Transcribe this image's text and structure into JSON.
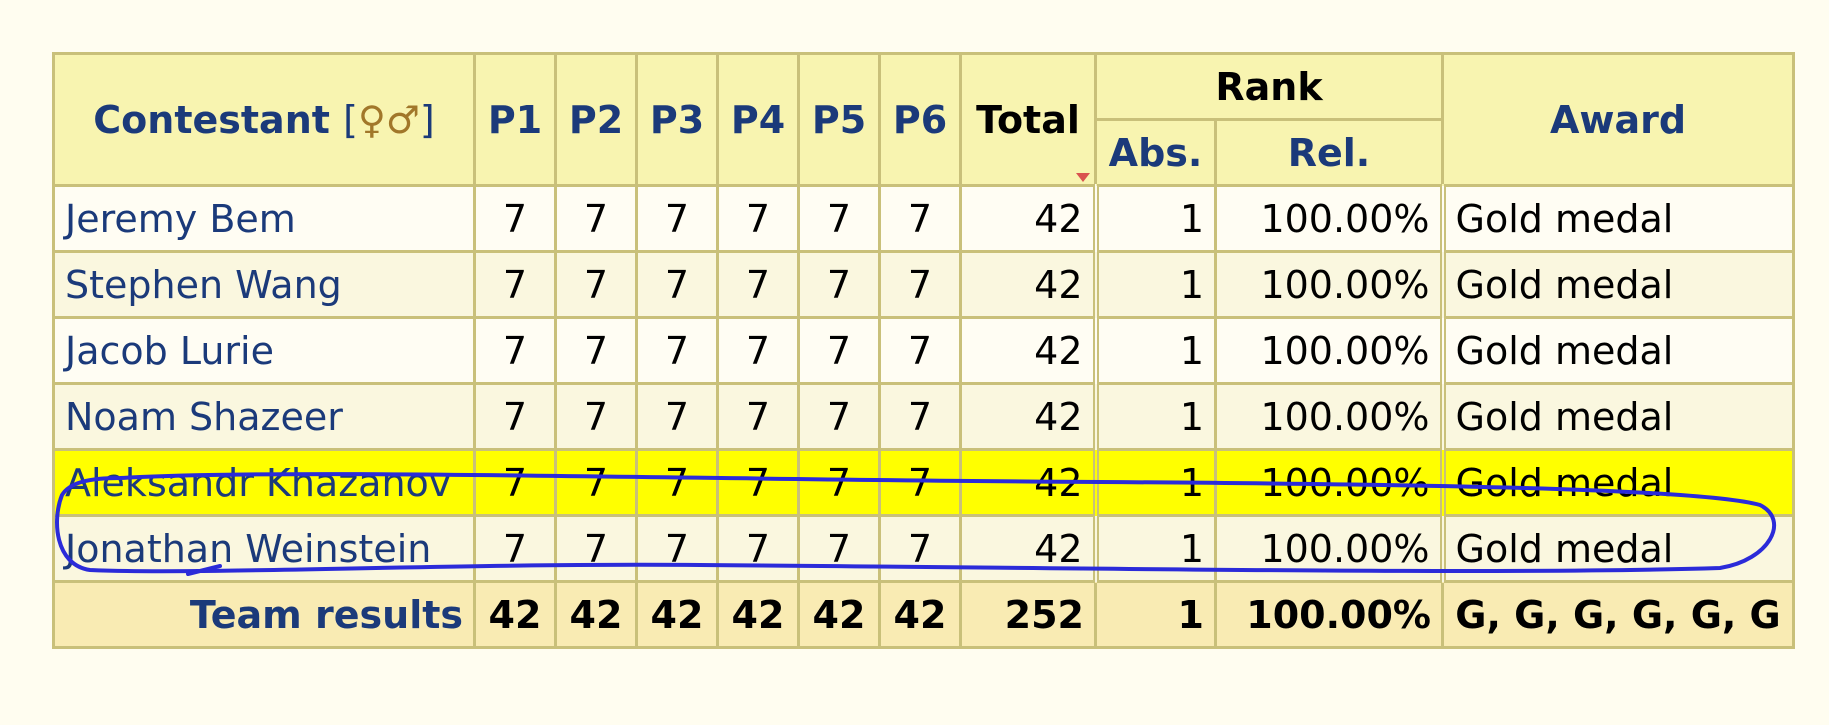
{
  "header": {
    "contestant": "Contestant",
    "gender_open": "[",
    "gender_symbols": "♀♂",
    "gender_close": "]",
    "problems": [
      "P1",
      "P2",
      "P3",
      "P4",
      "P5",
      "P6"
    ],
    "total": "Total",
    "rank": "Rank",
    "abs": "Abs.",
    "rel": "Rel.",
    "award": "Award"
  },
  "rows": [
    {
      "name": "Jeremy Bem",
      "scores": [
        "7",
        "7",
        "7",
        "7",
        "7",
        "7"
      ],
      "total": "42",
      "abs": "1",
      "rel": "100.00%",
      "award": "Gold medal"
    },
    {
      "name": "Stephen Wang",
      "scores": [
        "7",
        "7",
        "7",
        "7",
        "7",
        "7"
      ],
      "total": "42",
      "abs": "1",
      "rel": "100.00%",
      "award": "Gold medal"
    },
    {
      "name": "Jacob Lurie",
      "scores": [
        "7",
        "7",
        "7",
        "7",
        "7",
        "7"
      ],
      "total": "42",
      "abs": "1",
      "rel": "100.00%",
      "award": "Gold medal"
    },
    {
      "name": "Noam Shazeer",
      "scores": [
        "7",
        "7",
        "7",
        "7",
        "7",
        "7"
      ],
      "total": "42",
      "abs": "1",
      "rel": "100.00%",
      "award": "Gold medal"
    },
    {
      "name": "Aleksandr Khazanov",
      "scores": [
        "7",
        "7",
        "7",
        "7",
        "7",
        "7"
      ],
      "total": "42",
      "abs": "1",
      "rel": "100.00%",
      "award": "Gold medal"
    },
    {
      "name": "Jonathan Weinstein",
      "scores": [
        "7",
        "7",
        "7",
        "7",
        "7",
        "7"
      ],
      "total": "42",
      "abs": "1",
      "rel": "100.00%",
      "award": "Gold medal"
    }
  ],
  "team": {
    "label": "Team results",
    "scores": [
      "42",
      "42",
      "42",
      "42",
      "42",
      "42"
    ],
    "total": "252",
    "abs": "1",
    "rel": "100.00%",
    "award": "G, G, G, G, G, G"
  },
  "colors": {
    "highlight": "#ffff00",
    "annotation": "#2b2bd9",
    "header_bg": "#f8f4b0",
    "link": "#1b3a7a"
  }
}
